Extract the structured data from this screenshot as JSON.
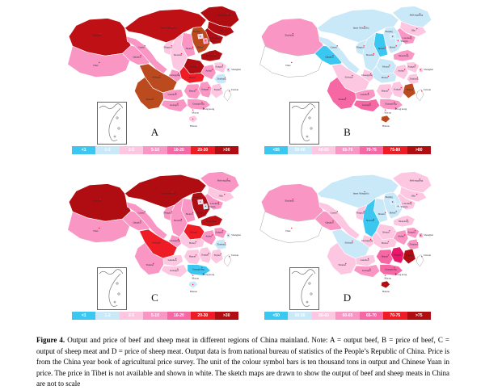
{
  "figure": {
    "caption_bold": "Figure 4.",
    "caption_text": " Output and price of beef and sheep meat in different regions of China mainland. Note: A = output beef, B = price of beef, C = output of sheep meat and D = price of sheep meat. Output data is from national bureau of statistics of the People’s Republic of China. Price is from the China year book of agricultural price survey. The unit of the colour symbol bars is ten thousand tons in output and Chinese Yuan in price. The price in Tibet is not available and shown in white. The sketch maps are drawn to show the output of beef and sheep meats in China are not to scale"
  },
  "palette": {
    "cyan": "#3cc7f0",
    "paleblue": "#c9e8f8",
    "palepink": "#fdc7e2",
    "pink": "#f996c3",
    "deeppink": "#f668a4",
    "red": "#ee1c25",
    "darkred": "#b00d12",
    "darkred2": "#bf1016",
    "brick": "#bb4a1e",
    "crimson": "#e8176a",
    "lavender": "#e7d6ee",
    "white": "#ffffff",
    "dot": "#e8112d",
    "label_text": "#2b2b3b"
  },
  "provinces": {
    "xinjiang": "Xinjiang",
    "xizang": "Tibet",
    "qinghai": "Qinghai",
    "gansu": "Gansu",
    "neimenggu": "Inner Mongolia",
    "heilongjiang": "Heilongjiang",
    "jilin": "Jilin",
    "liaoning": "Liaoning",
    "hebei": "Hebei",
    "beijing": "Beijing",
    "tianjin": "Tianjin",
    "shanxi": "Shanxi",
    "shaanxi": "Shaanxi",
    "ningxia": "Ningxia",
    "shandong": "Shandong",
    "henan": "Henan",
    "jiangsu": "Jiangsu",
    "anhui": "Anhui",
    "shanghai": "Shanghai",
    "zhejiang": "Zhejiang",
    "hubei": "Hubei",
    "chongqing": "Chongqing",
    "sichuan": "Sichuan",
    "hunan": "Hunan",
    "jiangxi": "Jiangxi",
    "fujian": "Fujian",
    "guizhou": "Guizhou",
    "yunnan": "Yunnan",
    "guangxi": "Guangxi",
    "guangdong": "Guangdong",
    "hainan": "Hainan",
    "taiwan": "Taiwan",
    "hongkong": "Hong kong",
    "macau": "Macau"
  },
  "chart_data": [
    {
      "type": "choropleth_map",
      "panel_letter": "A",
      "measure": "output",
      "commodity": "beef",
      "unit": "ten thousand tons",
      "legend_bins": [
        {
          "label": "<1",
          "color": "cyan"
        },
        {
          "label": "1-2",
          "color": "paleblue"
        },
        {
          "label": "2-5",
          "color": "palepink"
        },
        {
          "label": "5-10",
          "color": "pink"
        },
        {
          "label": "10-20",
          "color": "deeppink"
        },
        {
          "label": "20-30",
          "color": "red"
        },
        {
          "label": ">30",
          "color": "darkred"
        }
      ],
      "fills": {
        "xinjiang": "darkred2",
        "neimenggu": "darkred2",
        "heilongjiang": "darkred",
        "jilin": "darkred",
        "liaoning": "darkred",
        "hebei": "brick",
        "beijing": "lavender",
        "tianjin": "pink",
        "shanxi": "pink",
        "shaanxi": "palepink",
        "ningxia": "palepink",
        "shandong": "darkred",
        "henan": "darkred",
        "jiangsu": "palepink",
        "anhui": "pink",
        "shanghai": "paleblue",
        "zhejiang": "paleblue",
        "hubei": "red",
        "chongqing": "pink",
        "sichuan": "brick",
        "hunan": "pink",
        "jiangxi": "pink",
        "fujian": "palepink",
        "guizhou": "pink",
        "yunnan": "brick",
        "guangxi": "pink",
        "guangdong": "pink",
        "hainan": "palepink",
        "gansu": "pink",
        "qinghai": "pink",
        "xizang": "pink",
        "taiwan": "white"
      }
    },
    {
      "type": "choropleth_map",
      "panel_letter": "B",
      "measure": "price",
      "commodity": "beef",
      "unit": "Chinese Yuan",
      "legend_bins": [
        {
          "label": "<55",
          "color": "cyan"
        },
        {
          "label": "55-60",
          "color": "paleblue"
        },
        {
          "label": "60-65",
          "color": "palepink"
        },
        {
          "label": "65-70",
          "color": "pink"
        },
        {
          "label": "70-75",
          "color": "deeppink"
        },
        {
          "label": "75-80",
          "color": "red"
        },
        {
          "label": ">80",
          "color": "darkred"
        }
      ],
      "fills": {
        "xinjiang": "pink",
        "neimenggu": "paleblue",
        "heilongjiang": "paleblue",
        "jilin": "palepink",
        "liaoning": "pink",
        "hebei": "paleblue",
        "beijing": "paleblue",
        "tianjin": "paleblue",
        "shanxi": "cyan",
        "shaanxi": "paleblue",
        "ningxia": "paleblue",
        "shandong": "pink",
        "henan": "paleblue",
        "jiangsu": "palepink",
        "anhui": "palepink",
        "shanghai": "palepink",
        "zhejiang": "palepink",
        "hubei": "paleblue",
        "chongqing": "palepink",
        "sichuan": "palepink",
        "hunan": "palepink",
        "jiangxi": "palepink",
        "fujian": "brick",
        "guizhou": "pink",
        "yunnan": "deeppink",
        "guangxi": "deeppink",
        "guangdong": "pink",
        "hainan": "brick",
        "gansu": "paleblue",
        "qinghai": "cyan",
        "xizang": "white",
        "taiwan": "white"
      }
    },
    {
      "type": "choropleth_map",
      "panel_letter": "C",
      "measure": "output",
      "commodity": "sheep meat",
      "unit": "ten thousand tons",
      "legend_bins": [
        {
          "label": "<1",
          "color": "cyan"
        },
        {
          "label": "1-2",
          "color": "paleblue"
        },
        {
          "label": "2-5",
          "color": "palepink"
        },
        {
          "label": "5-10",
          "color": "pink"
        },
        {
          "label": "10-20",
          "color": "deeppink"
        },
        {
          "label": "20-30",
          "color": "red"
        },
        {
          "label": ">30",
          "color": "darkred"
        }
      ],
      "fills": {
        "xinjiang": "darkred",
        "neimenggu": "darkred",
        "heilongjiang": "pink",
        "jilin": "palepink",
        "liaoning": "pink",
        "hebei": "darkred",
        "beijing": "lavender",
        "tianjin": "paleblue",
        "shanxi": "pink",
        "shaanxi": "pink",
        "ningxia": "pink",
        "shandong": "darkred2",
        "henan": "red",
        "jiangsu": "pink",
        "anhui": "pink",
        "shanghai": "paleblue",
        "zhejiang": "paleblue",
        "hubei": "palepink",
        "chongqing": "pink",
        "sichuan": "red",
        "hunan": "palepink",
        "jiangxi": "palepink",
        "fujian": "palepink",
        "guizhou": "palepink",
        "yunnan": "pink",
        "guangxi": "palepink",
        "guangdong": "cyan",
        "hainan": "paleblue",
        "gansu": "pink",
        "qinghai": "pink",
        "xizang": "pink",
        "taiwan": "white"
      }
    },
    {
      "type": "choropleth_map",
      "panel_letter": "D",
      "measure": "price",
      "commodity": "sheep meat",
      "unit": "Chinese Yuan",
      "legend_bins": [
        {
          "label": "<50",
          "color": "cyan"
        },
        {
          "label": "50-55",
          "color": "paleblue"
        },
        {
          "label": "55-60",
          "color": "palepink"
        },
        {
          "label": "60-65",
          "color": "pink"
        },
        {
          "label": "65-70",
          "color": "deeppink"
        },
        {
          "label": "70-75",
          "color": "red"
        },
        {
          "label": ">75",
          "color": "darkred"
        }
      ],
      "fills": {
        "xinjiang": "pink",
        "neimenggu": "paleblue",
        "heilongjiang": "palepink",
        "jilin": "palepink",
        "liaoning": "palepink",
        "hebei": "paleblue",
        "beijing": "paleblue",
        "tianjin": "paleblue",
        "shanxi": "paleblue",
        "shaanxi": "cyan",
        "ningxia": "palepink",
        "shandong": "palepink",
        "henan": "palepink",
        "jiangsu": "pink",
        "anhui": "pink",
        "shanghai": "pink",
        "zhejiang": "pink",
        "hubei": "palepink",
        "chongqing": "palepink",
        "sichuan": "paleblue",
        "hunan": "deeppink",
        "jiangxi": "crimson",
        "fujian": "darkred",
        "guizhou": "palepink",
        "yunnan": "palepink",
        "guangxi": "pink",
        "guangdong": "deeppink",
        "hainan": "darkred",
        "gansu": "palepink",
        "qinghai": "pink",
        "xizang": "white",
        "taiwan": "white"
      }
    }
  ]
}
